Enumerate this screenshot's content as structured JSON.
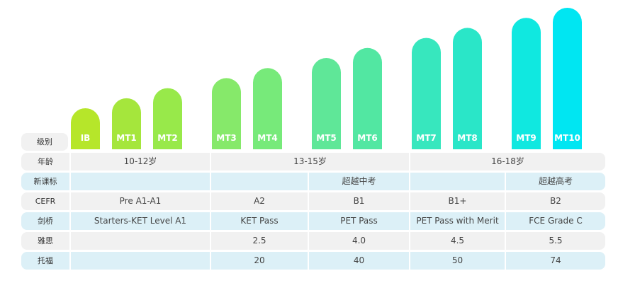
{
  "chart_data": {
    "type": "bar",
    "categories": [
      "IB",
      "MT1",
      "MT2",
      "MT3",
      "MT4",
      "MT5",
      "MT6",
      "MT7",
      "MT8",
      "MT9",
      "MT10"
    ],
    "values": [
      1,
      2,
      3,
      4,
      5,
      6,
      7,
      8,
      9,
      10,
      11
    ],
    "colors": [
      "#b6e62a",
      "#a5e63c",
      "#98e94a",
      "#86e96a",
      "#77ea7a",
      "#5fe798",
      "#52e7a2",
      "#37e7be",
      "#2ae6c8",
      "#10e8e0",
      "#00e6f2"
    ]
  },
  "table": {
    "level_label": "级别",
    "rows": [
      {
        "label": "年龄",
        "cells": [
          "10-12岁",
          "13-15岁",
          "16-18岁"
        ]
      },
      {
        "label": "新课标",
        "cells": [
          "",
          "",
          "超越中考",
          "",
          "超越高考"
        ]
      },
      {
        "label": "CEFR",
        "cells": [
          "Pre A1-A1",
          "A2",
          "B1",
          "B1+",
          "B2"
        ]
      },
      {
        "label": "剑桥",
        "cells": [
          "Starters-KET Level A1",
          "KET Pass",
          "PET Pass",
          "PET Pass with Merit",
          "FCE Grade C"
        ]
      },
      {
        "label": "雅思",
        "cells": [
          "",
          "2.5",
          "4.0",
          "4.5",
          "5.5"
        ]
      },
      {
        "label": "托福",
        "cells": [
          "",
          "20",
          "40",
          "50",
          "74"
        ]
      }
    ]
  }
}
